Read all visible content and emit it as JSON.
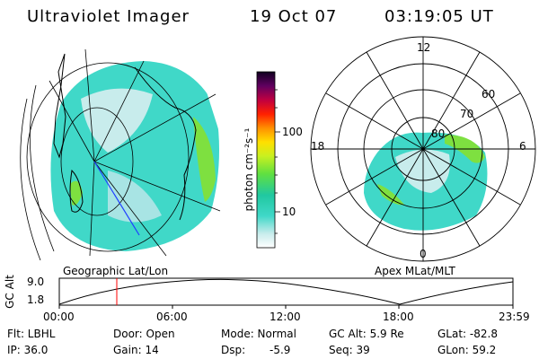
{
  "header": {
    "title": "Ultraviolet Imager",
    "date": "19 Oct 07",
    "time": "03:19:05 UT"
  },
  "colorbar": {
    "unit_label": "photon cm⁻²s⁻¹",
    "ticks": [
      "100",
      "10"
    ]
  },
  "left_panel": {
    "caption": "Geographic Lat/Lon"
  },
  "right_panel": {
    "caption": "Apex MLat/MLT",
    "mlt_labels": {
      "top": "12",
      "left": "18",
      "right": "6",
      "bottom": "0"
    },
    "lat_labels": [
      "60",
      "70",
      "80"
    ]
  },
  "altitude_plot": {
    "axis_label": "GC Alt",
    "y_ticks": [
      "9.0",
      "1.8"
    ],
    "x_ticks": [
      "00:00",
      "06:00",
      "12:00",
      "18:00",
      "23:59"
    ]
  },
  "info": {
    "flt": "Flt: LBHL",
    "door": "Door: Open",
    "mode": "Mode: Normal",
    "gc_alt": "GC Alt: 5.9 Re",
    "glat": "GLat: -82.8",
    "ip": "IP: 36.0",
    "gain": "Gain: 14",
    "dsp_label": "Dsp:",
    "dsp_value": "-5.9",
    "seq": "Seq: 39",
    "glon": "GLon: 59.2"
  },
  "colors": {
    "aurora_main": "#40d8c8",
    "aurora_light": "#c8ecec",
    "aurora_green": "#7ee040",
    "time_marker": "#ff0000",
    "track_line": "#2040ff"
  }
}
